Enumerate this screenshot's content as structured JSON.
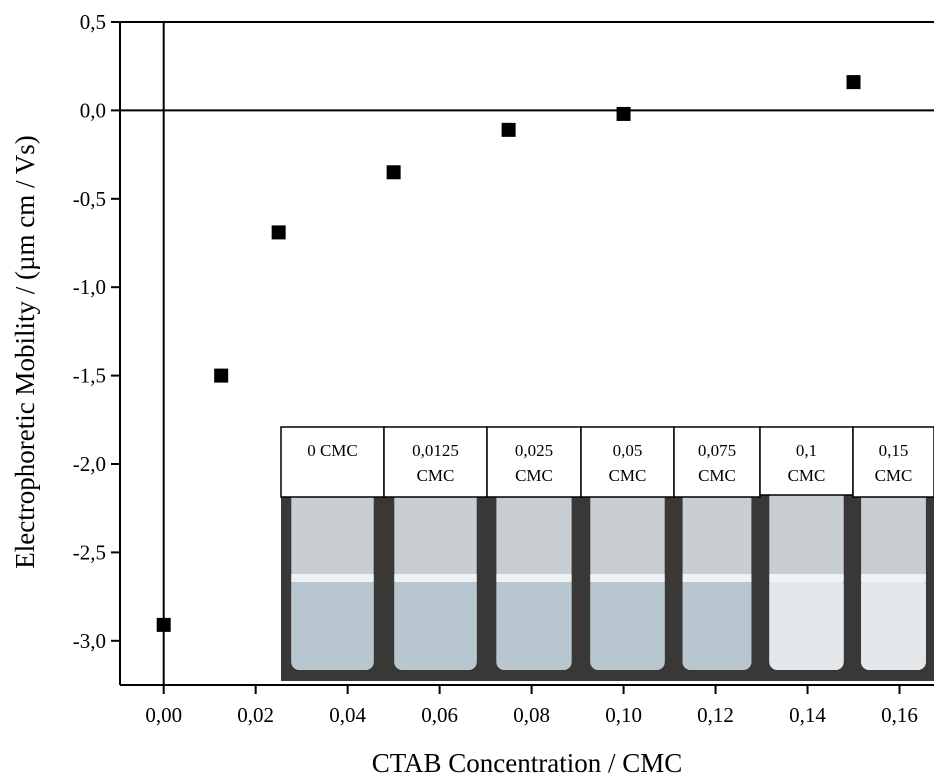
{
  "chart_data": {
    "type": "scatter",
    "x_label": "CTAB Concentration / CMC",
    "y_label": "Electrophoretic Mobility / (µm cm / Vs)",
    "x": [
      0,
      0.0125,
      0.025,
      0.05,
      0.075,
      0.1,
      0.15
    ],
    "values": [
      -2.91,
      -1.5,
      -0.69,
      -0.35,
      -0.11,
      -0.02,
      0.16
    ],
    "color": "#000000",
    "xlim": [
      -0.0095,
      0.1675
    ],
    "ylim": [
      -3.25,
      0.5
    ],
    "xticks": [
      {
        "value": 0,
        "label": "0,00"
      },
      {
        "value": 0.02,
        "label": "0,02"
      },
      {
        "value": 0.04,
        "label": "0,04"
      },
      {
        "value": 0.06,
        "label": "0,06"
      },
      {
        "value": 0.08,
        "label": "0,08"
      },
      {
        "value": 0.1,
        "label": "0,10"
      },
      {
        "value": 0.12,
        "label": "0,12"
      },
      {
        "value": 0.14,
        "label": "0,14"
      },
      {
        "value": 0.16,
        "label": "0,16"
      }
    ],
    "yticks": [
      {
        "value": 0.5,
        "label": "0,5"
      },
      {
        "value": 0,
        "label": "0,0"
      },
      {
        "value": -0.5,
        "label": "-0,5"
      },
      {
        "value": -1,
        "label": "-1,0"
      },
      {
        "value": -1.5,
        "label": "-1,5"
      },
      {
        "value": -2,
        "label": "-2,0"
      },
      {
        "value": -2.5,
        "label": "-2,5"
      },
      {
        "value": -3,
        "label": "-3,0"
      }
    ],
    "inset_labels": [
      [
        "0 CMC"
      ],
      [
        "0,0125",
        "CMC"
      ],
      [
        "0,025",
        "CMC"
      ],
      [
        "0,05",
        "CMC"
      ],
      [
        "0,075",
        "CMC"
      ],
      [
        "0,1",
        "CMC"
      ],
      [
        "0,15",
        "CMC"
      ]
    ]
  }
}
